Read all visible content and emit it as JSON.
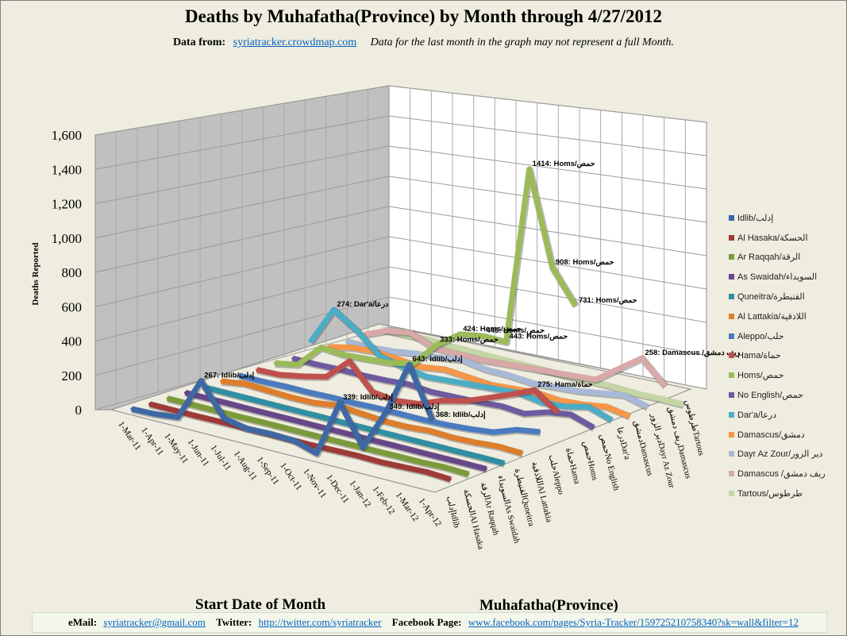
{
  "title": "Deaths by Muhafatha(Province) by Month through 4/27/2012",
  "subtitle": {
    "data_from_label": "Data from:",
    "data_from_link": "syriatracker.crowdmap.com",
    "note": "Data for the last month  in the graph may not represent a full Month."
  },
  "footer": {
    "email_label": "eMail:",
    "email": "syriatracker@gmail.com",
    "twitter_label": "Twitter:",
    "twitter": "http://twitter.com/syriatracker",
    "facebook_label": "Facebook  Page:",
    "facebook": "www.facebook.com/pages/Syria-Tracker/159725210758340?sk=wall&filter=12"
  },
  "colors": {
    "Idlib": "#3e68a5",
    "Al Hasaka": "#9e3a38",
    "Ar Raqqah": "#7b9a3a",
    "As Swaidah": "#66478a",
    "Quneitra": "#2e8fa3",
    "Al Lattakia": "#de7d2a",
    "Aleppo": "#4a7ac0",
    "Hama": "#c0504d",
    "Homs": "#9bbb59",
    "No English": "#6e5aa0",
    "Dar'a": "#4bacc6",
    "Damascus": "#f79646",
    "Dayr Az Zour": "#a8b8d8",
    "Damascus Rural": "#d9a8a8",
    "Tartous": "#c3d6a3"
  },
  "chart_data": {
    "type": "line",
    "title": "Deaths by Muhafatha(Province) by Month through 4/27/2012",
    "ylabel": "Deaths  Reported",
    "xlabel": "Start Date of Month",
    "zlabel": "Muhafatha(Province)",
    "ylim": [
      0,
      1600
    ],
    "yticks": [
      "0",
      "200",
      "400",
      "600",
      "800",
      "1,000",
      "1,200",
      "1,400",
      "1,600"
    ],
    "categories": [
      "1-Mar-11",
      "1-Apr-11",
      "1-May-11",
      "1-Jun-11",
      "1-Jul-11",
      "1-Aug-11",
      "1-Sep-11",
      "1-Oct-11",
      "1-Nov-11",
      "1-Dec-11",
      "1-Jan-12",
      "1-Feb-12",
      "1-Mar-12",
      "1-Apr-12"
    ],
    "series_axis_labels": [
      "إدلبIdlib",
      "الحسكةAl Hasaka",
      "الرقةAr Raqqah",
      "السويداءAs Swaidah",
      "القنيطرةQuneitra",
      "اللاذقيةAl Lattakia",
      "حلبAleppo",
      "حماةHama",
      "حمصHoms",
      "حمصNo English",
      "درعاDar'a",
      "دمشقDamascus",
      "دير الزورDayr Az Zour",
      "ريف دمشقDamascus",
      "طرطوسTartous"
    ],
    "series": [
      {
        "name": "Idlib/إدلب",
        "key": "Idlib",
        "values": [
          5,
          10,
          25,
          267,
          85,
          60,
          65,
          60,
          20,
          339,
          120,
          349,
          643,
          368
        ]
      },
      {
        "name": "Al Hasaka/الحسكة",
        "key": "Al Hasaka",
        "values": [
          0,
          0,
          0,
          2,
          2,
          3,
          2,
          2,
          5,
          8,
          5,
          10,
          15,
          8
        ]
      },
      {
        "name": "Ar Raqqah/الرقة",
        "key": "Ar Raqqah",
        "values": [
          0,
          0,
          0,
          0,
          2,
          2,
          2,
          2,
          3,
          3,
          5,
          5,
          10,
          5
        ]
      },
      {
        "name": "As Swaidah/السويداء",
        "key": "As Swaidah",
        "values": [
          0,
          0,
          1,
          0,
          1,
          1,
          1,
          1,
          1,
          2,
          2,
          2,
          3,
          2
        ]
      },
      {
        "name": "Quneitra/القنيطرة",
        "key": "Quneitra",
        "values": [
          0,
          0,
          0,
          0,
          0,
          1,
          0,
          1,
          1,
          1,
          2,
          2,
          3,
          2
        ]
      },
      {
        "name": "Al Lattakia/اللاذقية",
        "key": "Al Lattakia",
        "values": [
          0,
          20,
          15,
          10,
          12,
          30,
          20,
          10,
          10,
          20,
          15,
          20,
          30,
          25
        ]
      },
      {
        "name": "Aleppo/حلب",
        "key": "Aleppo",
        "values": [
          0,
          0,
          5,
          5,
          10,
          10,
          15,
          15,
          15,
          20,
          30,
          45,
          90,
          110
        ]
      },
      {
        "name": "Hama/حماة",
        "key": "Hama",
        "values": [
          0,
          5,
          30,
          60,
          180,
          40,
          25,
          40,
          90,
          120,
          170,
          220,
          275,
          185
        ]
      },
      {
        "name": "Homs/حمص",
        "key": "Homs",
        "values": [
          5,
          30,
          160,
          150,
          160,
          170,
          200,
          333,
          424,
          445,
          443,
          1414,
          908,
          731
        ]
      },
      {
        "name": "No English/حمص",
        "key": "No English",
        "values": [
          0,
          0,
          5,
          5,
          10,
          20,
          10,
          15,
          20,
          30,
          20,
          60,
          80,
          40
        ]
      },
      {
        "name": "Dar'a/درعا",
        "key": "Dar'a",
        "values": [
          60,
          274,
          190,
          80,
          50,
          30,
          40,
          50,
          60,
          70,
          50,
          60,
          90,
          50
        ]
      },
      {
        "name": "Damascus/دمشق",
        "key": "Damascus",
        "values": [
          0,
          30,
          40,
          30,
          20,
          40,
          30,
          20,
          30,
          40,
          30,
          40,
          60,
          40
        ]
      },
      {
        "name": "Dayr Az Zour/دير الزور",
        "key": "Dayr Az Zour",
        "values": [
          0,
          0,
          10,
          30,
          40,
          60,
          40,
          40,
          30,
          40,
          50,
          70,
          90,
          60
        ]
      },
      {
        "name": "Damascus /ريف دمشق",
        "key": "Damascus Rural",
        "values": [
          5,
          60,
          80,
          30,
          30,
          30,
          40,
          50,
          60,
          70,
          80,
          170,
          258,
          140
        ]
      },
      {
        "name": "Tartous/طرطوس",
        "key": "Tartous",
        "values": [
          0,
          5,
          10,
          5,
          5,
          5,
          5,
          5,
          5,
          10,
          10,
          5,
          10,
          10
        ]
      }
    ],
    "labels": [
      {
        "series": 0,
        "point": 3,
        "text": "267: Idlib/إدلب"
      },
      {
        "series": 0,
        "point": 9,
        "text": "339: Idlib/إدلب"
      },
      {
        "series": 0,
        "point": 11,
        "text": "349: Idlib/إدلب"
      },
      {
        "series": 0,
        "point": 12,
        "text": "643: Idlib/إدلب"
      },
      {
        "series": 0,
        "point": 13,
        "text": "368: Idlib/إدلب"
      },
      {
        "series": 7,
        "point": 12,
        "text": "275: Hama/حماة"
      },
      {
        "series": 8,
        "point": 7,
        "text": "333: Homs/حمص"
      },
      {
        "series": 8,
        "point": 8,
        "text": "424: Homs/حمص"
      },
      {
        "series": 8,
        "point": 9,
        "text": "445: Homs/حمص"
      },
      {
        "series": 8,
        "point": 10,
        "text": "443: Homs/حمص"
      },
      {
        "series": 8,
        "point": 11,
        "text": "1414: Homs/حمص"
      },
      {
        "series": 8,
        "point": 12,
        "text": "908: Homs/حمص"
      },
      {
        "series": 8,
        "point": 13,
        "text": "731: Homs/حمص"
      },
      {
        "series": 10,
        "point": 1,
        "text": "274: Dar'a/درعا"
      },
      {
        "series": 13,
        "point": 12,
        "text": "258: Damascus /ريف دمشق"
      }
    ],
    "legend": "right",
    "grid": true
  }
}
